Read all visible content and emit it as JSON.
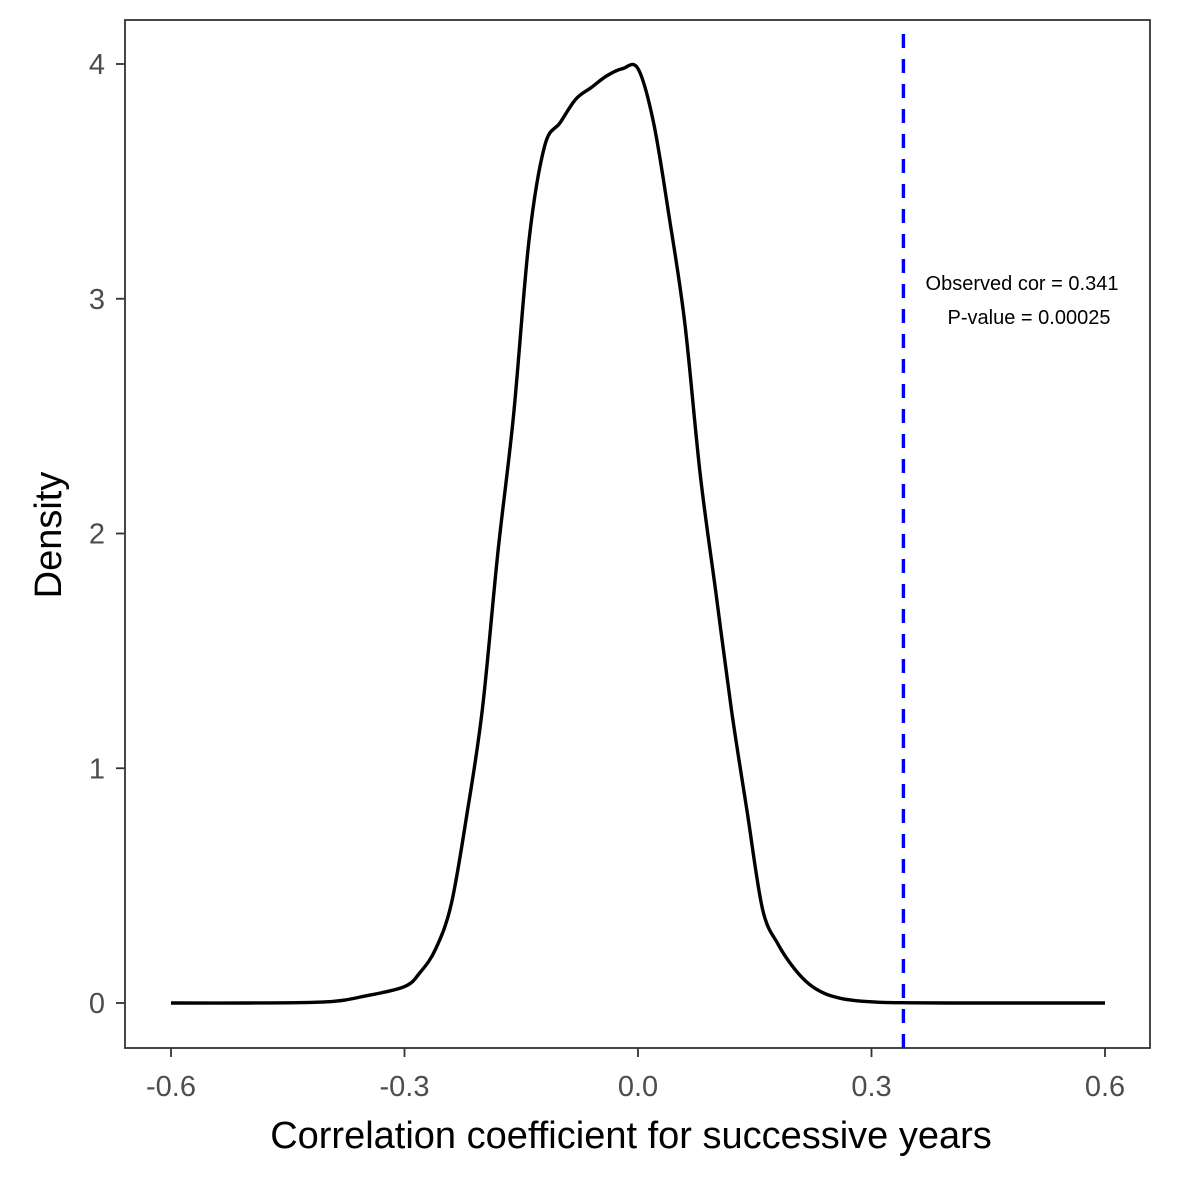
{
  "chart_data": {
    "type": "line",
    "title": "",
    "xlabel": "Correlation coefficient for successive years",
    "ylabel": "Density",
    "xlim": [
      -0.6,
      0.6
    ],
    "ylim": [
      0,
      4
    ],
    "x_ticks": [
      "-0.6",
      "-0.3",
      "0.0",
      "0.3",
      "0.6"
    ],
    "y_ticks": [
      "0",
      "1",
      "2",
      "3",
      "4"
    ],
    "grid": false,
    "series": [
      {
        "color": "#000000",
        "x": [
          -0.6,
          -0.5,
          -0.4,
          -0.35,
          -0.3,
          -0.28,
          -0.26,
          -0.24,
          -0.22,
          -0.2,
          -0.18,
          -0.16,
          -0.14,
          -0.12,
          -0.1,
          -0.08,
          -0.06,
          -0.04,
          -0.02,
          0.0,
          0.02,
          0.04,
          0.06,
          0.08,
          0.1,
          0.12,
          0.14,
          0.16,
          0.18,
          0.2,
          0.22,
          0.24,
          0.26,
          0.28,
          0.3,
          0.32,
          0.35,
          0.4,
          0.5,
          0.6
        ],
        "y": [
          0.0,
          0.0,
          0.005,
          0.03,
          0.07,
          0.13,
          0.23,
          0.42,
          0.8,
          1.25,
          1.92,
          2.5,
          3.25,
          3.65,
          3.75,
          3.85,
          3.9,
          3.95,
          3.98,
          3.98,
          3.75,
          3.35,
          2.9,
          2.25,
          1.75,
          1.25,
          0.82,
          0.4,
          0.25,
          0.15,
          0.08,
          0.04,
          0.02,
          0.01,
          0.005,
          0.002,
          0.001,
          0.0,
          0.0,
          0.0
        ]
      }
    ],
    "vline": {
      "x": 0.341,
      "color": "#0000ff",
      "style": "dashed"
    },
    "annotations": [
      "Observed cor = 0.341",
      "P-value = 0.00025"
    ]
  }
}
